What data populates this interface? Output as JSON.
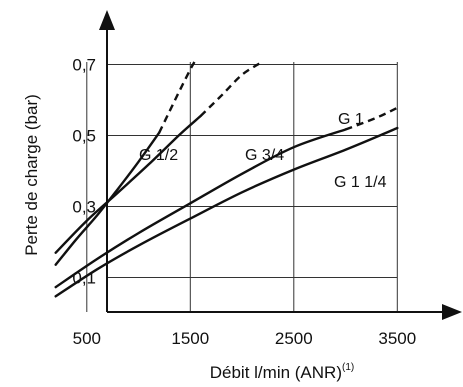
{
  "chart_data": {
    "type": "line",
    "title": "",
    "xlabel": "Débit l/min (ANR)",
    "xlabel_superscript": "(1)",
    "ylabel": "Perte de charge (bar)",
    "xlim": [
      0,
      3800
    ],
    "ylim": [
      0,
      0.8
    ],
    "x_ticks": [
      500,
      1500,
      2500,
      3500
    ],
    "x_tick_labels": [
      "500",
      "1500",
      "2500",
      "3500"
    ],
    "y_ticks": [
      0.1,
      0.3,
      0.5,
      0.7
    ],
    "y_tick_labels": [
      "0,1",
      "0,3",
      "0,5",
      "0,7"
    ],
    "grid": true,
    "legend": "none",
    "line_color": "#111111",
    "series": [
      {
        "name": "G 1/2",
        "solid": [
          [
            200,
            0.136
          ],
          [
            400,
            0.208
          ],
          [
            600,
            0.275
          ],
          [
            800,
            0.349
          ],
          [
            1000,
            0.426
          ],
          [
            1200,
            0.508
          ]
        ],
        "dashed": [
          [
            1200,
            0.508
          ],
          [
            1300,
            0.568
          ],
          [
            1400,
            0.628
          ],
          [
            1500,
            0.686
          ],
          [
            1540,
            0.707
          ]
        ]
      },
      {
        "name": "G 3/4",
        "solid": [
          [
            200,
            0.17
          ],
          [
            500,
            0.26
          ],
          [
            800,
            0.339
          ],
          [
            1100,
            0.419
          ],
          [
            1400,
            0.503
          ],
          [
            1600,
            0.555
          ]
        ],
        "dashed": [
          [
            1600,
            0.555
          ],
          [
            1800,
            0.612
          ],
          [
            2000,
            0.671
          ],
          [
            2200,
            0.708
          ]
        ]
      },
      {
        "name": "G 1",
        "solid": [
          [
            200,
            0.073
          ],
          [
            600,
            0.152
          ],
          [
            1000,
            0.225
          ],
          [
            1500,
            0.309
          ],
          [
            2000,
            0.392
          ],
          [
            2500,
            0.467
          ],
          [
            3000,
            0.517
          ]
        ],
        "dashed": [
          [
            3000,
            0.517
          ],
          [
            3300,
            0.55
          ],
          [
            3500,
            0.578
          ]
        ]
      },
      {
        "name": "G 1 1/4",
        "solid": [
          [
            200,
            0.047
          ],
          [
            600,
            0.123
          ],
          [
            1000,
            0.19
          ],
          [
            1500,
            0.266
          ],
          [
            2000,
            0.34
          ],
          [
            2500,
            0.404
          ],
          [
            3000,
            0.46
          ],
          [
            3500,
            0.521
          ]
        ],
        "dashed": []
      }
    ],
    "annotations": [
      "G 1/2",
      "G 3/4",
      "G 1",
      "G 1 1/4"
    ]
  }
}
